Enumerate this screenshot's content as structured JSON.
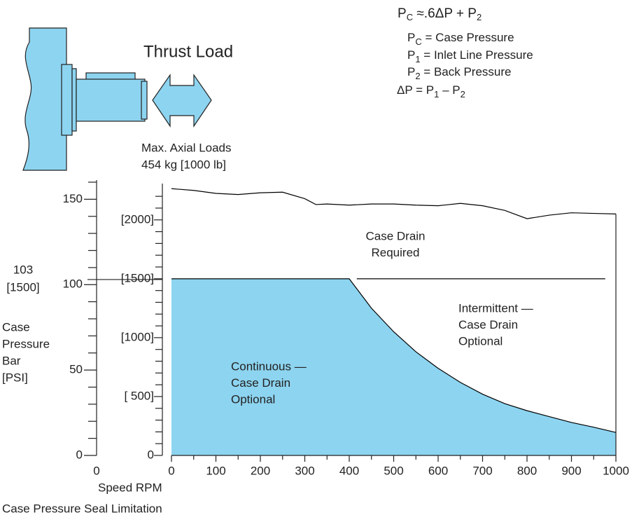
{
  "chart_data": {
    "type": "region",
    "title": "Case Pressure Seal Limitation",
    "xlabel": "Speed RPM",
    "ylabel": [
      "Case",
      "Pressure",
      "Bar",
      "[PSI]"
    ],
    "thrust": {
      "title": "Thrust Load",
      "lines": [
        "Max. Axial Loads",
        "454 kg [1000 lb]"
      ]
    },
    "formula": [
      [
        "P",
        "C",
        " ≈.6ΔP + P",
        "2"
      ],
      [
        "P",
        "C",
        " = Case Pressure"
      ],
      [
        "P",
        "1",
        " = Inlet Line Pressure"
      ],
      [
        "P",
        "2",
        " = Back Pressure"
      ],
      [
        "ΔP = P",
        "1",
        " – P",
        "2"
      ]
    ],
    "xlim": [
      0,
      1000
    ],
    "xticks": [
      0,
      100,
      200,
      300,
      400,
      500,
      600,
      700,
      800,
      900,
      1000
    ],
    "xminorticks": [
      50,
      150,
      250,
      350,
      450,
      550,
      650,
      750,
      850,
      950
    ],
    "left_origin_label": 0,
    "ylim": [
      0,
      160
    ],
    "yticks": [
      0,
      50,
      100,
      150
    ],
    "yminorticks": [
      10,
      20,
      30,
      40,
      60,
      70,
      80,
      90,
      110,
      120,
      130,
      140,
      160
    ],
    "y2lim": [
      0,
      2320
    ],
    "y2ticks": [
      {
        "value": 0,
        "label": "0"
      },
      {
        "value": 500,
        "label": "[ 500]"
      },
      {
        "value": 1000,
        "label": "[1000]"
      },
      {
        "value": 1500,
        "label": "[1500]"
      },
      {
        "value": 2000,
        "label": "[2000]"
      }
    ],
    "y2minorticks": [
      100,
      200,
      300,
      400,
      600,
      700,
      800,
      900,
      1100,
      1200,
      1300,
      1400,
      1600,
      1700,
      1800,
      1900,
      2100,
      2200
    ],
    "reference_line": {
      "value": 103,
      "psi_label": "[1500]"
    },
    "series": [
      {
        "axis": "y2",
        "color": "#8dd4f0",
        "fill": true,
        "x": [
          0,
          400,
          450,
          500,
          550,
          600,
          650,
          700,
          750,
          800,
          850,
          900,
          950,
          1000
        ],
        "values": [
          1500,
          1500,
          1250,
          1050,
          880,
          740,
          620,
          520,
          440,
          380,
          330,
          280,
          240,
          195
        ]
      },
      {
        "axis": "y2",
        "color": "#000000",
        "fill": false,
        "x": [
          0,
          50,
          100,
          150,
          200,
          250,
          300,
          325,
          350,
          400,
          450,
          500,
          550,
          600,
          650,
          700,
          750,
          800,
          850,
          900,
          950,
          1000
        ],
        "values": [
          2265,
          2250,
          2225,
          2215,
          2230,
          2235,
          2180,
          2130,
          2135,
          2125,
          2135,
          2135,
          2125,
          2120,
          2140,
          2120,
          2080,
          2010,
          2040,
          2060,
          2055,
          2050
        ]
      },
      {
        "axis": "y2",
        "color": "#000000",
        "fill": false,
        "x": [
          417,
          976
        ],
        "values": [
          1500,
          1500
        ]
      }
    ],
    "annotations": [
      {
        "lines": [
          "Case Drain",
          "Required"
        ]
      },
      {
        "lines": [
          "Intermittent —",
          "Case Drain",
          "Optional"
        ]
      },
      {
        "lines": [
          "Continuous —",
          "Case Drain",
          "Optional"
        ]
      }
    ]
  }
}
